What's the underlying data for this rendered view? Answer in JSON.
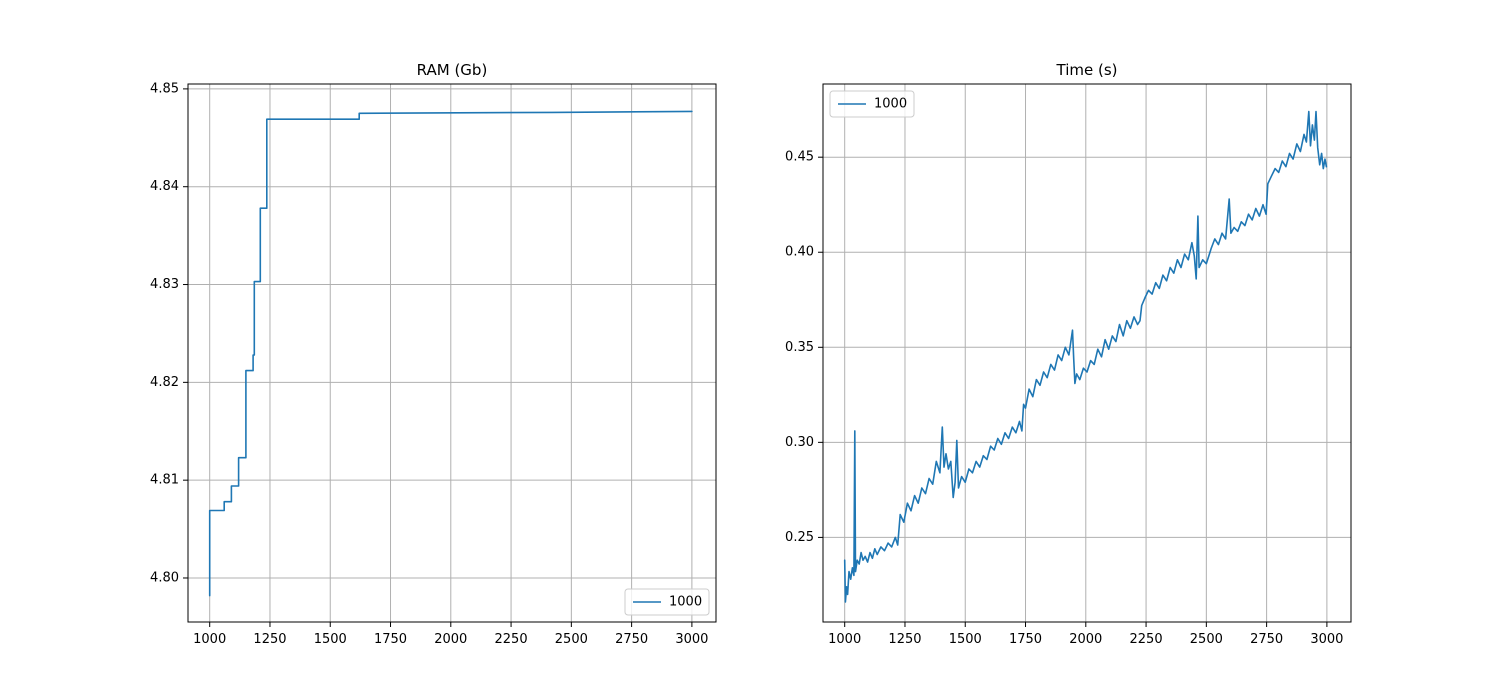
{
  "chart_data": [
    {
      "type": "line",
      "title": "RAM (Gb)",
      "xlabel": "",
      "ylabel": "",
      "xlim": [
        910,
        3100
      ],
      "ylim": [
        4.7955,
        4.8505
      ],
      "xticks": [
        1000,
        1250,
        1500,
        1750,
        2000,
        2250,
        2500,
        2750,
        3000
      ],
      "xtick_labels": [
        "1000",
        "1250",
        "1500",
        "1750",
        "2000",
        "2250",
        "2500",
        "2750",
        "3000"
      ],
      "yticks": [
        4.8,
        4.81,
        4.82,
        4.83,
        4.84,
        4.85
      ],
      "ytick_labels": [
        "4.80",
        "4.81",
        "4.82",
        "4.83",
        "4.84",
        "4.85"
      ],
      "grid": true,
      "legend_position": "lower right",
      "color": "#1f77b4",
      "series": [
        {
          "name": "1000",
          "points": [
            [
              1000,
              4.7982
            ],
            [
              1000,
              4.8069
            ],
            [
              1060,
              4.8069
            ],
            [
              1060,
              4.8078
            ],
            [
              1090,
              4.8078
            ],
            [
              1090,
              4.8094
            ],
            [
              1120,
              4.8094
            ],
            [
              1120,
              4.8123
            ],
            [
              1150,
              4.8123
            ],
            [
              1150,
              4.8212
            ],
            [
              1180,
              4.8212
            ],
            [
              1180,
              4.8228
            ],
            [
              1185,
              4.8228
            ],
            [
              1185,
              4.8303
            ],
            [
              1210,
              4.8303
            ],
            [
              1210,
              4.8378
            ],
            [
              1237,
              4.8378
            ],
            [
              1237,
              4.8469
            ],
            [
              1620,
              4.8469
            ],
            [
              1620,
              4.8475
            ],
            [
              2420,
              4.8476
            ],
            [
              3000,
              4.8477
            ]
          ]
        }
      ]
    },
    {
      "type": "line",
      "title": "Time (s)",
      "xlabel": "",
      "ylabel": "",
      "xlim": [
        910,
        3100
      ],
      "ylim": [
        0.2055,
        0.4885
      ],
      "xticks": [
        1000,
        1250,
        1500,
        1750,
        2000,
        2250,
        2500,
        2750,
        3000
      ],
      "xtick_labels": [
        "1000",
        "1250",
        "1500",
        "1750",
        "2000",
        "2250",
        "2500",
        "2750",
        "3000"
      ],
      "yticks": [
        0.25,
        0.3,
        0.35,
        0.4,
        0.45
      ],
      "ytick_labels": [
        "0.25",
        "0.30",
        "0.35",
        "0.40",
        "0.45"
      ],
      "grid": true,
      "legend_position": "upper left",
      "color": "#1f77b4",
      "series": [
        {
          "name": "1000",
          "points": [
            [
              1000,
              0.238
            ],
            [
              1003,
              0.216
            ],
            [
              1008,
              0.224
            ],
            [
              1012,
              0.22
            ],
            [
              1018,
              0.232
            ],
            [
              1025,
              0.228
            ],
            [
              1032,
              0.234
            ],
            [
              1038,
              0.23
            ],
            [
              1042,
              0.306
            ],
            [
              1045,
              0.232
            ],
            [
              1052,
              0.238
            ],
            [
              1060,
              0.236
            ],
            [
              1068,
              0.242
            ],
            [
              1076,
              0.238
            ],
            [
              1085,
              0.24
            ],
            [
              1095,
              0.237
            ],
            [
              1105,
              0.242
            ],
            [
              1115,
              0.239
            ],
            [
              1125,
              0.244
            ],
            [
              1135,
              0.241
            ],
            [
              1150,
              0.245
            ],
            [
              1165,
              0.243
            ],
            [
              1180,
              0.247
            ],
            [
              1195,
              0.245
            ],
            [
              1210,
              0.25
            ],
            [
              1220,
              0.246
            ],
            [
              1230,
              0.262
            ],
            [
              1245,
              0.258
            ],
            [
              1260,
              0.268
            ],
            [
              1275,
              0.264
            ],
            [
              1290,
              0.272
            ],
            [
              1305,
              0.268
            ],
            [
              1320,
              0.276
            ],
            [
              1335,
              0.273
            ],
            [
              1350,
              0.281
            ],
            [
              1365,
              0.278
            ],
            [
              1380,
              0.29
            ],
            [
              1395,
              0.284
            ],
            [
              1405,
              0.308
            ],
            [
              1412,
              0.287
            ],
            [
              1420,
              0.294
            ],
            [
              1430,
              0.286
            ],
            [
              1440,
              0.29
            ],
            [
              1450,
              0.271
            ],
            [
              1458,
              0.279
            ],
            [
              1465,
              0.301
            ],
            [
              1472,
              0.276
            ],
            [
              1485,
              0.282
            ],
            [
              1500,
              0.279
            ],
            [
              1515,
              0.286
            ],
            [
              1530,
              0.284
            ],
            [
              1545,
              0.29
            ],
            [
              1560,
              0.287
            ],
            [
              1575,
              0.293
            ],
            [
              1590,
              0.291
            ],
            [
              1605,
              0.298
            ],
            [
              1620,
              0.296
            ],
            [
              1635,
              0.302
            ],
            [
              1650,
              0.299
            ],
            [
              1665,
              0.305
            ],
            [
              1680,
              0.302
            ],
            [
              1695,
              0.308
            ],
            [
              1710,
              0.305
            ],
            [
              1725,
              0.311
            ],
            [
              1735,
              0.306
            ],
            [
              1742,
              0.32
            ],
            [
              1750,
              0.318
            ],
            [
              1765,
              0.328
            ],
            [
              1780,
              0.324
            ],
            [
              1795,
              0.333
            ],
            [
              1810,
              0.33
            ],
            [
              1825,
              0.337
            ],
            [
              1840,
              0.334
            ],
            [
              1855,
              0.341
            ],
            [
              1870,
              0.338
            ],
            [
              1885,
              0.346
            ],
            [
              1900,
              0.343
            ],
            [
              1915,
              0.35
            ],
            [
              1930,
              0.346
            ],
            [
              1945,
              0.359
            ],
            [
              1950,
              0.344
            ],
            [
              1955,
              0.331
            ],
            [
              1962,
              0.336
            ],
            [
              1975,
              0.333
            ],
            [
              1990,
              0.339
            ],
            [
              2005,
              0.337
            ],
            [
              2020,
              0.343
            ],
            [
              2035,
              0.341
            ],
            [
              2050,
              0.349
            ],
            [
              2065,
              0.345
            ],
            [
              2080,
              0.354
            ],
            [
              2095,
              0.349
            ],
            [
              2110,
              0.356
            ],
            [
              2125,
              0.353
            ],
            [
              2140,
              0.362
            ],
            [
              2155,
              0.356
            ],
            [
              2170,
              0.364
            ],
            [
              2185,
              0.36
            ],
            [
              2200,
              0.366
            ],
            [
              2215,
              0.362
            ],
            [
              2225,
              0.364
            ],
            [
              2232,
              0.372
            ],
            [
              2245,
              0.376
            ],
            [
              2260,
              0.38
            ],
            [
              2275,
              0.378
            ],
            [
              2290,
              0.384
            ],
            [
              2305,
              0.381
            ],
            [
              2320,
              0.388
            ],
            [
              2335,
              0.385
            ],
            [
              2350,
              0.392
            ],
            [
              2365,
              0.389
            ],
            [
              2380,
              0.396
            ],
            [
              2395,
              0.392
            ],
            [
              2410,
              0.399
            ],
            [
              2425,
              0.396
            ],
            [
              2440,
              0.405
            ],
            [
              2450,
              0.398
            ],
            [
              2458,
              0.386
            ],
            [
              2465,
              0.419
            ],
            [
              2470,
              0.392
            ],
            [
              2485,
              0.396
            ],
            [
              2500,
              0.394
            ],
            [
              2510,
              0.398
            ],
            [
              2520,
              0.402
            ],
            [
              2535,
              0.407
            ],
            [
              2550,
              0.404
            ],
            [
              2565,
              0.41
            ],
            [
              2580,
              0.407
            ],
            [
              2595,
              0.428
            ],
            [
              2602,
              0.41
            ],
            [
              2615,
              0.413
            ],
            [
              2630,
              0.411
            ],
            [
              2645,
              0.416
            ],
            [
              2660,
              0.414
            ],
            [
              2675,
              0.42
            ],
            [
              2690,
              0.417
            ],
            [
              2705,
              0.423
            ],
            [
              2720,
              0.419
            ],
            [
              2735,
              0.425
            ],
            [
              2748,
              0.42
            ],
            [
              2755,
              0.436
            ],
            [
              2770,
              0.44
            ],
            [
              2785,
              0.444
            ],
            [
              2800,
              0.442
            ],
            [
              2815,
              0.448
            ],
            [
              2830,
              0.445
            ],
            [
              2845,
              0.452
            ],
            [
              2860,
              0.449
            ],
            [
              2875,
              0.457
            ],
            [
              2890,
              0.453
            ],
            [
              2905,
              0.462
            ],
            [
              2915,
              0.458
            ],
            [
              2925,
              0.474
            ],
            [
              2932,
              0.456
            ],
            [
              2940,
              0.467
            ],
            [
              2948,
              0.459
            ],
            [
              2955,
              0.474
            ],
            [
              2962,
              0.455
            ],
            [
              2970,
              0.446
            ],
            [
              2978,
              0.452
            ],
            [
              2985,
              0.444
            ],
            [
              2992,
              0.449
            ],
            [
              2998,
              0.445
            ]
          ]
        }
      ]
    }
  ]
}
